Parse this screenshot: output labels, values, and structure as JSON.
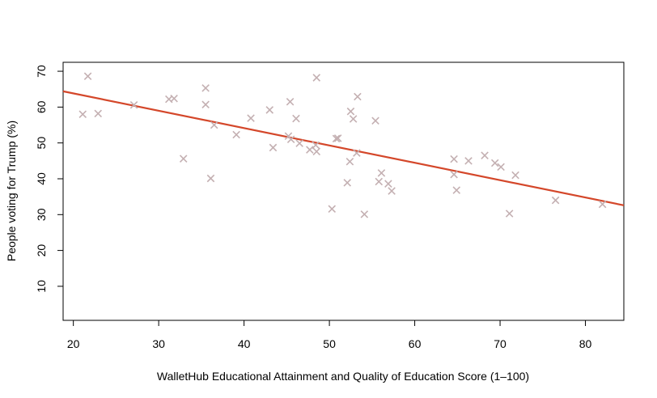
{
  "chart_data": {
    "type": "scatter",
    "title": "",
    "xlabel": "WalletHub Educational Attainment and Quality of Education Score (1–100)",
    "ylabel": "People voting for Trump (%)",
    "xlim": [
      18.8,
      84.5
    ],
    "ylim": [
      0.5,
      72.5
    ],
    "x_ticks": [
      20,
      30,
      40,
      50,
      60,
      70,
      80
    ],
    "y_ticks": [
      10,
      20,
      30,
      40,
      50,
      60,
      70
    ],
    "x_tick_labels": [
      "20",
      "30",
      "40",
      "50",
      "60",
      "70",
      "80"
    ],
    "y_tick_labels": [
      "10",
      "20",
      "30",
      "40",
      "50",
      "60",
      "70"
    ],
    "grid": false,
    "marker": "x",
    "marker_color": "#c4b0b2",
    "line_color": "#d4472a",
    "points": [
      {
        "x": 21.1,
        "y": 58.0
      },
      {
        "x": 21.7,
        "y": 68.6
      },
      {
        "x": 22.9,
        "y": 58.2
      },
      {
        "x": 27.1,
        "y": 60.6
      },
      {
        "x": 31.2,
        "y": 62.2
      },
      {
        "x": 31.8,
        "y": 62.4
      },
      {
        "x": 32.9,
        "y": 45.6
      },
      {
        "x": 35.5,
        "y": 65.3
      },
      {
        "x": 35.5,
        "y": 60.7
      },
      {
        "x": 36.1,
        "y": 40.1
      },
      {
        "x": 36.5,
        "y": 55.0
      },
      {
        "x": 39.1,
        "y": 52.3
      },
      {
        "x": 40.8,
        "y": 56.9
      },
      {
        "x": 43.0,
        "y": 59.2
      },
      {
        "x": 43.4,
        "y": 48.7
      },
      {
        "x": 45.2,
        "y": 51.9
      },
      {
        "x": 45.4,
        "y": 61.5
      },
      {
        "x": 45.5,
        "y": 51.0
      },
      {
        "x": 46.1,
        "y": 56.8
      },
      {
        "x": 46.5,
        "y": 49.9
      },
      {
        "x": 47.7,
        "y": 48.1
      },
      {
        "x": 48.4,
        "y": 49.4
      },
      {
        "x": 48.5,
        "y": 47.6
      },
      {
        "x": 48.5,
        "y": 68.2
      },
      {
        "x": 50.3,
        "y": 31.6
      },
      {
        "x": 50.8,
        "y": 51.2
      },
      {
        "x": 51.0,
        "y": 51.3
      },
      {
        "x": 52.1,
        "y": 38.9
      },
      {
        "x": 52.4,
        "y": 44.8
      },
      {
        "x": 52.5,
        "y": 58.8
      },
      {
        "x": 52.8,
        "y": 56.7
      },
      {
        "x": 53.2,
        "y": 47.2
      },
      {
        "x": 53.3,
        "y": 62.9
      },
      {
        "x": 54.1,
        "y": 30.1
      },
      {
        "x": 55.4,
        "y": 56.2
      },
      {
        "x": 55.8,
        "y": 39.2
      },
      {
        "x": 56.1,
        "y": 41.6
      },
      {
        "x": 56.9,
        "y": 38.6
      },
      {
        "x": 57.3,
        "y": 36.6
      },
      {
        "x": 64.6,
        "y": 45.5
      },
      {
        "x": 64.6,
        "y": 41.2
      },
      {
        "x": 64.9,
        "y": 36.8
      },
      {
        "x": 66.3,
        "y": 45.0
      },
      {
        "x": 68.2,
        "y": 46.5
      },
      {
        "x": 69.4,
        "y": 44.4
      },
      {
        "x": 70.1,
        "y": 43.3
      },
      {
        "x": 71.1,
        "y": 30.3
      },
      {
        "x": 71.8,
        "y": 41.0
      },
      {
        "x": 76.5,
        "y": 34.0
      },
      {
        "x": 82.0,
        "y": 32.9
      }
    ],
    "trend_line": {
      "x": [
        18.8,
        84.5
      ],
      "y": [
        64.4,
        32.6
      ]
    }
  }
}
